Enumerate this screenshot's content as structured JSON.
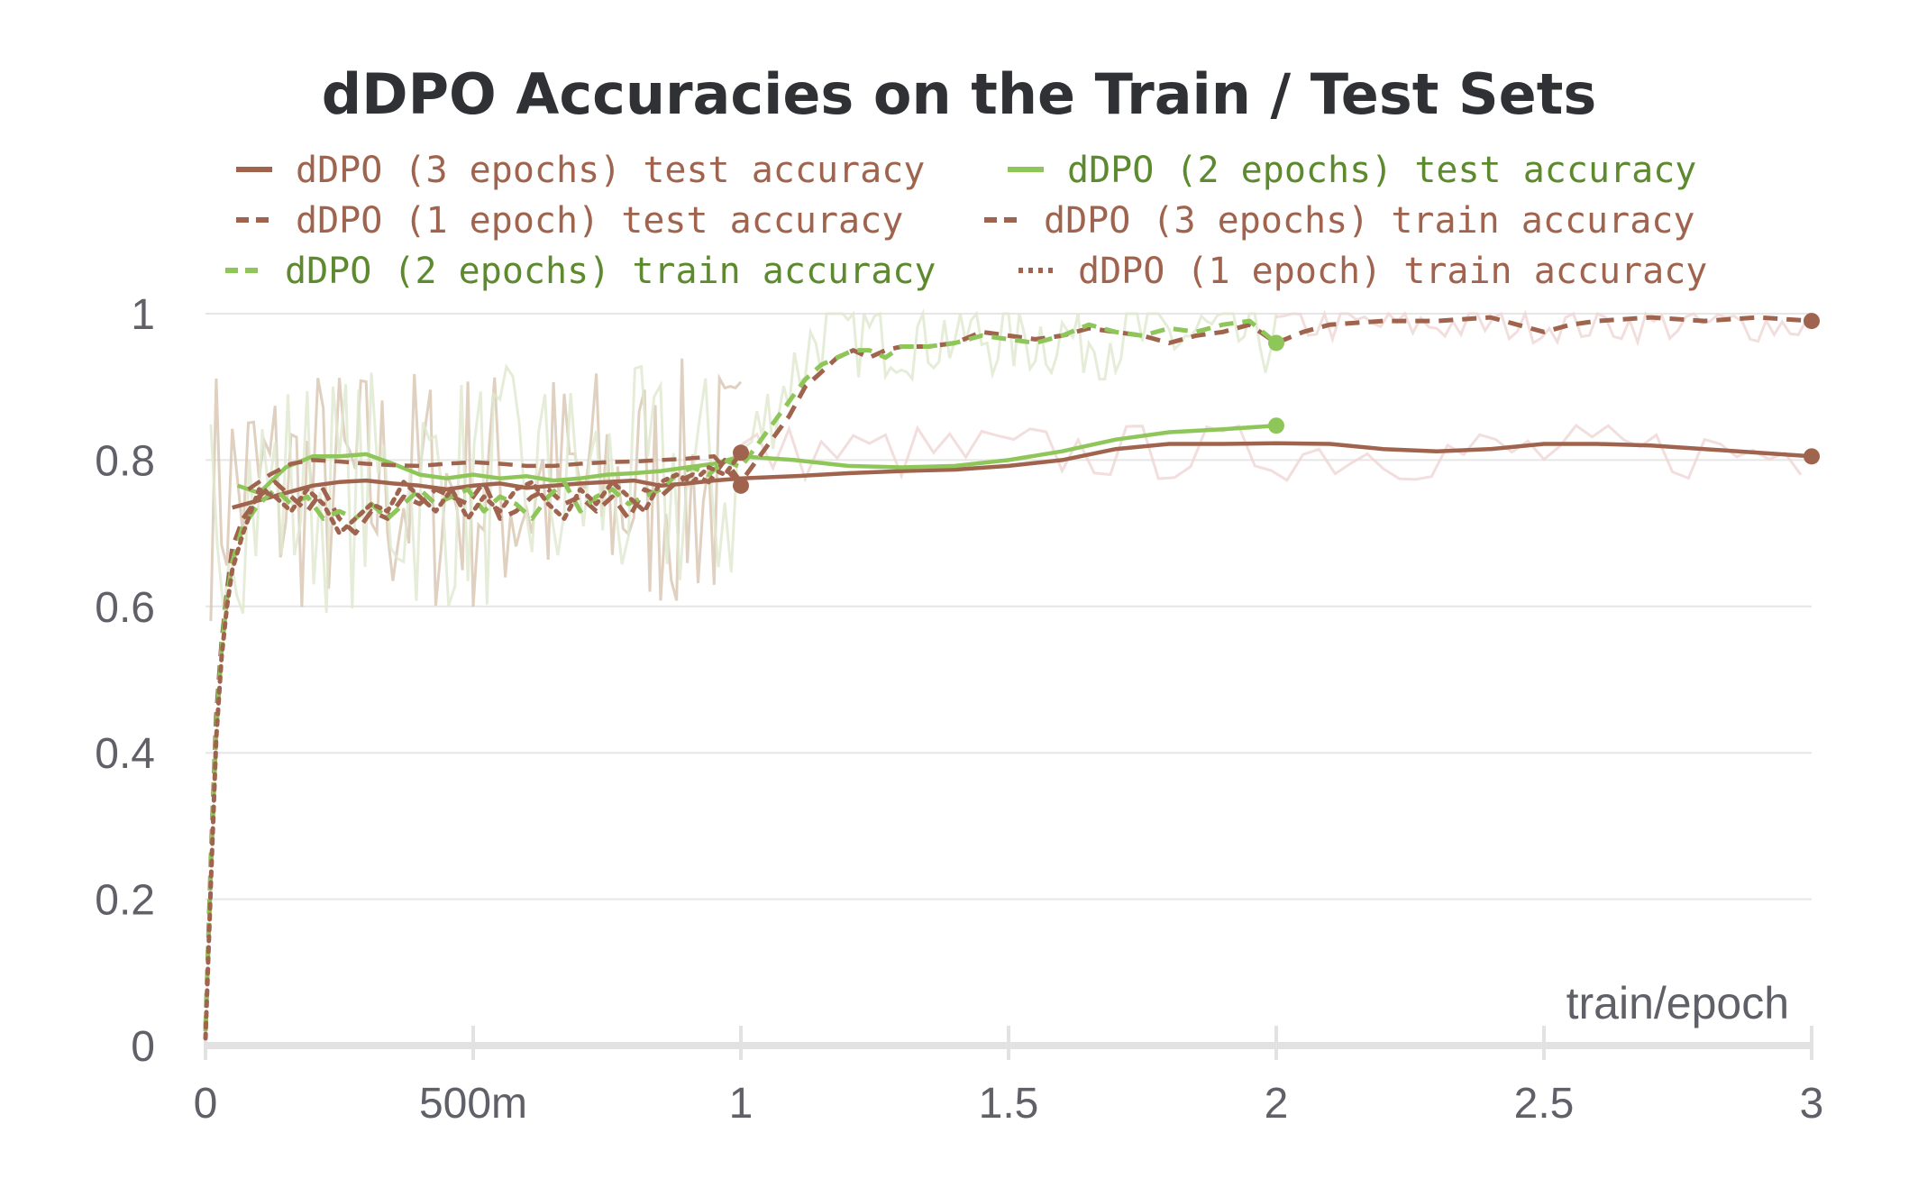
{
  "chart_data": {
    "type": "line",
    "title": "dDPO Accuracies on the Train / Test Sets",
    "xlabel": "train/epoch",
    "ylabel": "",
    "xlim": [
      0,
      3
    ],
    "ylim": [
      0,
      1
    ],
    "x_ticks": [
      {
        "value": 0,
        "label": "0"
      },
      {
        "value": 0.5,
        "label": "500m"
      },
      {
        "value": 1,
        "label": "1"
      },
      {
        "value": 1.5,
        "label": "1.5"
      },
      {
        "value": 2,
        "label": "2"
      },
      {
        "value": 2.5,
        "label": "2.5"
      },
      {
        "value": 3,
        "label": "3"
      }
    ],
    "y_ticks": [
      {
        "value": 0,
        "label": "0"
      },
      {
        "value": 0.2,
        "label": "0.2"
      },
      {
        "value": 0.4,
        "label": "0.4"
      },
      {
        "value": 0.6,
        "label": "0.6"
      },
      {
        "value": 0.8,
        "label": "0.8"
      },
      {
        "value": 1,
        "label": "1"
      }
    ],
    "grid": true,
    "legend_position": "top",
    "colors": {
      "brown": "#a0644e",
      "green": "#8fc65a",
      "green_text": "#5d8a2e",
      "grid": "#e6e6e6",
      "axis": "#e2e2e2",
      "raw_brown": "#d8c4b0",
      "raw_green": "#dfe9cf",
      "raw_pink": "#efd6d3"
    },
    "series": [
      {
        "name": "dDPO (3 epochs) test accuracy",
        "color": "#a0644e",
        "dash": "solid",
        "role": "test",
        "end_marker": true,
        "x": [
          0.05,
          0.1,
          0.15,
          0.2,
          0.25,
          0.3,
          0.35,
          0.4,
          0.45,
          0.5,
          0.55,
          0.6,
          0.65,
          0.7,
          0.75,
          0.8,
          0.85,
          0.9,
          0.95,
          1.0,
          1.1,
          1.2,
          1.3,
          1.4,
          1.5,
          1.6,
          1.7,
          1.8,
          1.9,
          2.0,
          2.1,
          2.2,
          2.3,
          2.4,
          2.5,
          2.6,
          2.7,
          2.8,
          2.9,
          3.0
        ],
        "y": [
          0.735,
          0.745,
          0.755,
          0.765,
          0.77,
          0.772,
          0.768,
          0.765,
          0.76,
          0.765,
          0.768,
          0.762,
          0.765,
          0.768,
          0.77,
          0.772,
          0.765,
          0.768,
          0.772,
          0.775,
          0.778,
          0.782,
          0.785,
          0.787,
          0.792,
          0.8,
          0.815,
          0.822,
          0.822,
          0.823,
          0.822,
          0.815,
          0.812,
          0.815,
          0.822,
          0.822,
          0.82,
          0.815,
          0.81,
          0.805
        ]
      },
      {
        "name": "dDPO (2 epochs) test accuracy",
        "color": "#8fc65a",
        "dash": "solid",
        "role": "test",
        "end_marker": true,
        "x": [
          0.06,
          0.1,
          0.15,
          0.2,
          0.25,
          0.3,
          0.35,
          0.4,
          0.45,
          0.5,
          0.55,
          0.6,
          0.65,
          0.7,
          0.75,
          0.8,
          0.85,
          0.9,
          0.95,
          1.0,
          1.1,
          1.2,
          1.3,
          1.4,
          1.5,
          1.6,
          1.7,
          1.8,
          1.9,
          2.0
        ],
        "y": [
          0.765,
          0.755,
          0.79,
          0.805,
          0.805,
          0.808,
          0.795,
          0.78,
          0.775,
          0.78,
          0.775,
          0.778,
          0.772,
          0.775,
          0.78,
          0.782,
          0.785,
          0.79,
          0.795,
          0.805,
          0.8,
          0.792,
          0.79,
          0.792,
          0.8,
          0.812,
          0.828,
          0.838,
          0.842,
          0.847
        ]
      },
      {
        "name": "dDPO (1 epoch) test accuracy",
        "color": "#a0644e",
        "dash": "dashed",
        "role": "test",
        "end_marker": true,
        "x": [
          0.08,
          0.12,
          0.16,
          0.2,
          0.25,
          0.3,
          0.35,
          0.4,
          0.45,
          0.5,
          0.55,
          0.6,
          0.65,
          0.7,
          0.75,
          0.8,
          0.85,
          0.9,
          0.95,
          1.0
        ],
        "y": [
          0.76,
          0.78,
          0.795,
          0.8,
          0.798,
          0.795,
          0.793,
          0.792,
          0.795,
          0.797,
          0.795,
          0.792,
          0.792,
          0.795,
          0.797,
          0.798,
          0.8,
          0.802,
          0.805,
          0.765
        ]
      },
      {
        "name": "dDPO (3 epochs) train accuracy",
        "color": "#a0644e",
        "dash": "dashed",
        "role": "train",
        "end_marker": true,
        "x": [
          0,
          0.01,
          0.02,
          0.03,
          0.04,
          0.05,
          0.07,
          0.1,
          0.13,
          0.16,
          0.19,
          0.22,
          0.25,
          0.28,
          0.31,
          0.34,
          0.37,
          0.4,
          0.43,
          0.46,
          0.49,
          0.52,
          0.55,
          0.58,
          0.61,
          0.64,
          0.67,
          0.7,
          0.73,
          0.76,
          0.79,
          0.82,
          0.85,
          0.88,
          0.91,
          0.94,
          0.97,
          1.0,
          1.03,
          1.06,
          1.09,
          1.12,
          1.15,
          1.18,
          1.21,
          1.24,
          1.27,
          1.3,
          1.35,
          1.4,
          1.45,
          1.5,
          1.55,
          1.6,
          1.65,
          1.7,
          1.75,
          1.8,
          1.85,
          1.9,
          1.95,
          2.0,
          2.05,
          2.1,
          2.2,
          2.3,
          2.4,
          2.45,
          2.5,
          2.55,
          2.6,
          2.7,
          2.8,
          2.9,
          3.0
        ],
        "y": [
          0.02,
          0.25,
          0.45,
          0.55,
          0.62,
          0.68,
          0.72,
          0.75,
          0.77,
          0.75,
          0.73,
          0.76,
          0.72,
          0.7,
          0.73,
          0.72,
          0.75,
          0.74,
          0.76,
          0.75,
          0.74,
          0.77,
          0.72,
          0.73,
          0.75,
          0.76,
          0.74,
          0.75,
          0.73,
          0.75,
          0.72,
          0.76,
          0.75,
          0.77,
          0.78,
          0.77,
          0.8,
          0.77,
          0.8,
          0.83,
          0.86,
          0.9,
          0.92,
          0.94,
          0.95,
          0.94,
          0.95,
          0.955,
          0.955,
          0.96,
          0.975,
          0.97,
          0.965,
          0.97,
          0.98,
          0.975,
          0.97,
          0.96,
          0.97,
          0.975,
          0.985,
          0.96,
          0.975,
          0.985,
          0.99,
          0.99,
          0.995,
          0.985,
          0.975,
          0.985,
          0.99,
          0.995,
          0.99,
          0.995,
          0.99
        ]
      },
      {
        "name": "dDPO (2 epochs) train accuracy",
        "color": "#8fc65a",
        "dash": "dashed",
        "role": "train",
        "end_marker": true,
        "x": [
          0,
          0.01,
          0.02,
          0.03,
          0.04,
          0.05,
          0.07,
          0.1,
          0.13,
          0.16,
          0.19,
          0.22,
          0.25,
          0.28,
          0.31,
          0.34,
          0.37,
          0.4,
          0.43,
          0.46,
          0.49,
          0.52,
          0.55,
          0.58,
          0.61,
          0.64,
          0.67,
          0.7,
          0.73,
          0.76,
          0.79,
          0.82,
          0.85,
          0.88,
          0.91,
          0.94,
          0.97,
          1.0,
          1.03,
          1.06,
          1.09,
          1.12,
          1.15,
          1.18,
          1.21,
          1.24,
          1.27,
          1.3,
          1.35,
          1.4,
          1.45,
          1.5,
          1.55,
          1.6,
          1.65,
          1.7,
          1.75,
          1.8,
          1.85,
          1.9,
          1.95,
          2.0
        ],
        "y": [
          0.02,
          0.24,
          0.43,
          0.54,
          0.61,
          0.66,
          0.71,
          0.74,
          0.76,
          0.74,
          0.75,
          0.72,
          0.73,
          0.72,
          0.74,
          0.72,
          0.74,
          0.76,
          0.74,
          0.75,
          0.76,
          0.73,
          0.75,
          0.74,
          0.72,
          0.75,
          0.77,
          0.73,
          0.75,
          0.76,
          0.74,
          0.75,
          0.76,
          0.78,
          0.79,
          0.78,
          0.8,
          0.79,
          0.82,
          0.85,
          0.88,
          0.91,
          0.93,
          0.94,
          0.95,
          0.95,
          0.94,
          0.955,
          0.955,
          0.96,
          0.97,
          0.965,
          0.96,
          0.97,
          0.985,
          0.975,
          0.97,
          0.98,
          0.975,
          0.985,
          0.99,
          0.96
        ]
      },
      {
        "name": "dDPO (1 epoch) train accuracy",
        "color": "#a0644e",
        "dash": "dotted",
        "role": "train",
        "end_marker": true,
        "x": [
          0,
          0.01,
          0.02,
          0.03,
          0.04,
          0.05,
          0.07,
          0.1,
          0.13,
          0.16,
          0.19,
          0.22,
          0.25,
          0.28,
          0.31,
          0.34,
          0.37,
          0.4,
          0.43,
          0.46,
          0.49,
          0.52,
          0.55,
          0.58,
          0.61,
          0.64,
          0.67,
          0.7,
          0.73,
          0.76,
          0.79,
          0.82,
          0.85,
          0.88,
          0.91,
          0.94,
          0.97,
          1.0
        ],
        "y": [
          0.01,
          0.22,
          0.42,
          0.53,
          0.6,
          0.65,
          0.7,
          0.76,
          0.75,
          0.73,
          0.76,
          0.74,
          0.7,
          0.72,
          0.74,
          0.73,
          0.77,
          0.75,
          0.73,
          0.76,
          0.72,
          0.75,
          0.73,
          0.76,
          0.77,
          0.74,
          0.72,
          0.76,
          0.74,
          0.77,
          0.75,
          0.73,
          0.77,
          0.78,
          0.77,
          0.79,
          0.78,
          0.81
        ]
      }
    ]
  }
}
